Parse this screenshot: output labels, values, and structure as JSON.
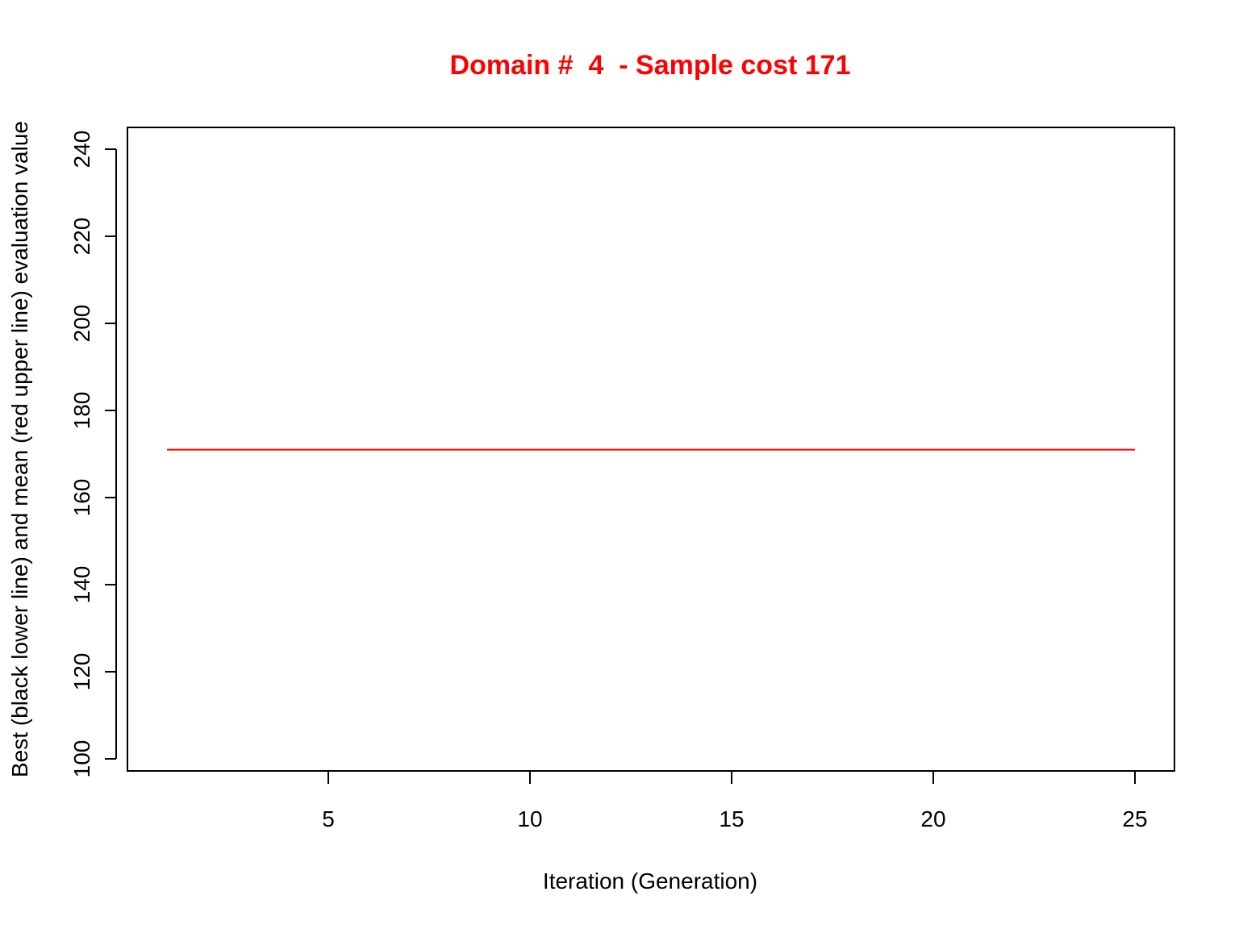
{
  "chart_data": {
    "type": "line",
    "title": "Domain #  4  - Sample cost 171",
    "title_color": "#ff0000",
    "xlabel": "Iteration (Generation)",
    "ylabel": "Best (black lower line) and mean (red upper line) evaluation value",
    "xlim": [
      0,
      26
    ],
    "ylim": [
      100,
      240
    ],
    "x_ticks": [
      5,
      10,
      15,
      20,
      25
    ],
    "y_ticks": [
      100,
      120,
      140,
      160,
      180,
      200,
      220,
      240
    ],
    "grid": false,
    "series": [
      {
        "color": "#ff0000",
        "x": [
          1,
          2,
          3,
          4,
          5,
          6,
          7,
          8,
          9,
          10,
          11,
          12,
          13,
          14,
          15,
          16,
          17,
          18,
          19,
          20,
          21,
          22,
          23,
          24,
          25
        ],
        "values": [
          171,
          171,
          171,
          171,
          171,
          171,
          171,
          171,
          171,
          171,
          171,
          171,
          171,
          171,
          171,
          171,
          171,
          171,
          171,
          171,
          171,
          171,
          171,
          171,
          171
        ]
      }
    ]
  }
}
